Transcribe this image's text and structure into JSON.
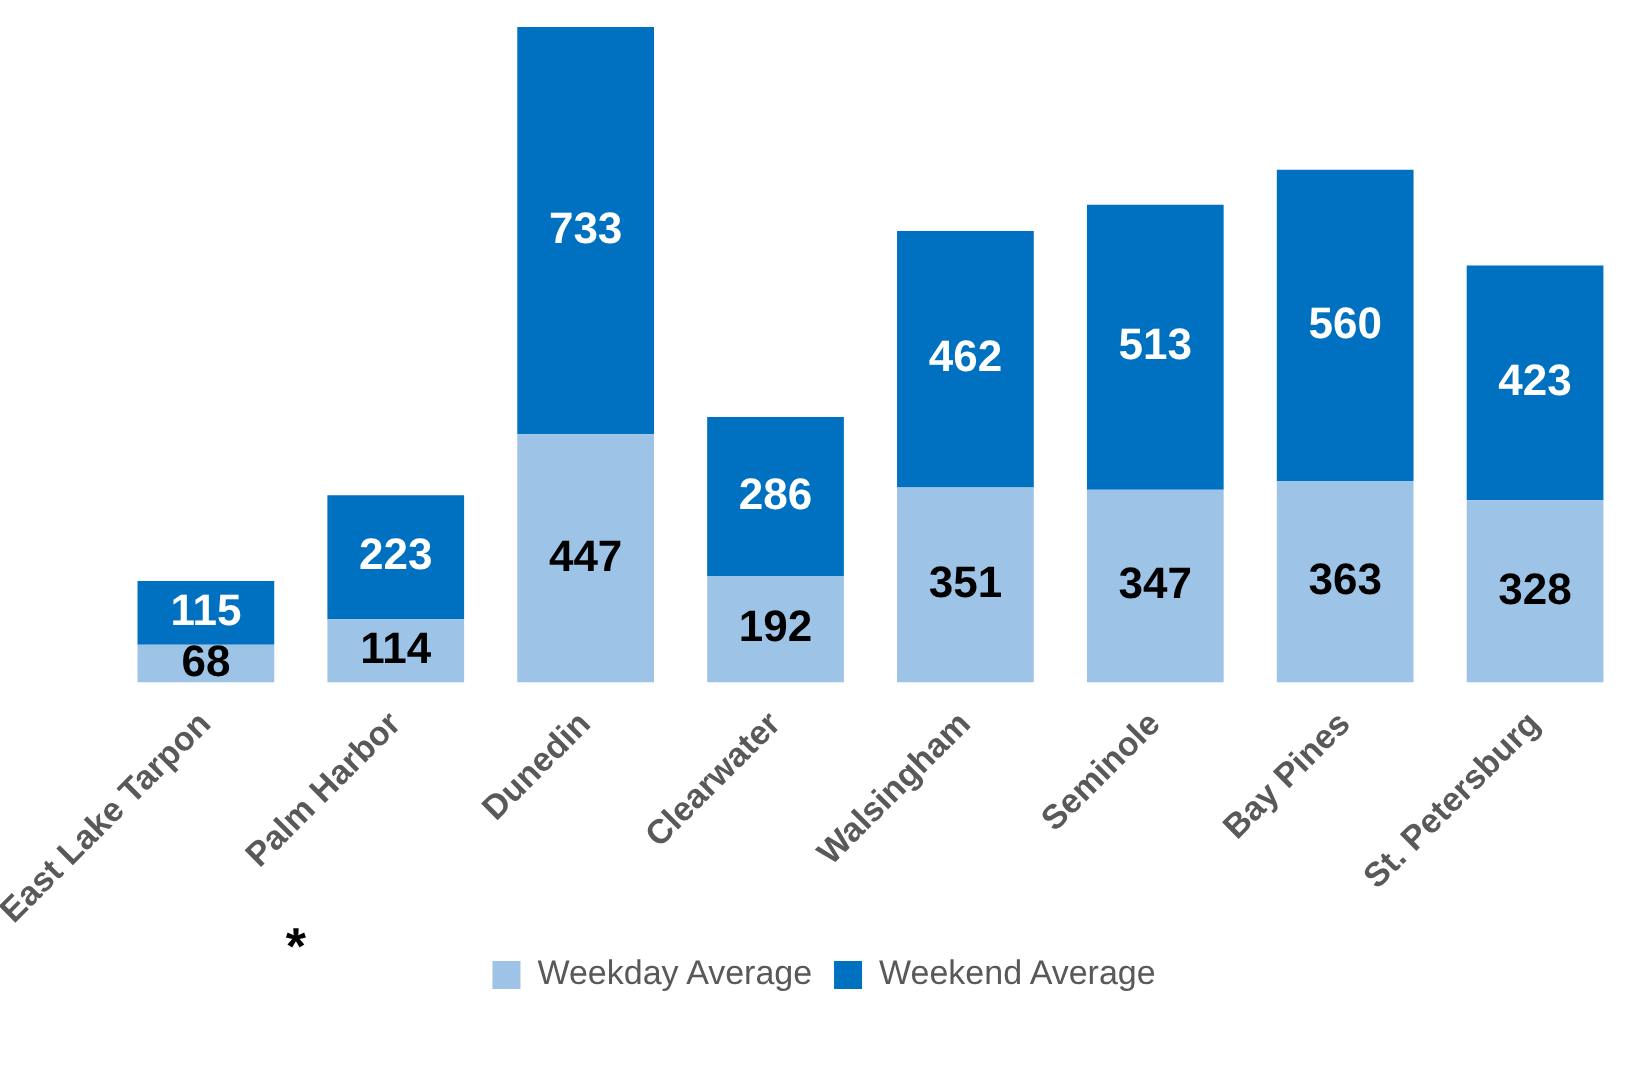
{
  "chart_data": {
    "type": "bar",
    "stacked": true,
    "data_labels": true,
    "legend": "bottom",
    "grid": false,
    "tick_labels": "x",
    "categories": [
      "East Lake Tarpon",
      "Palm Harbor",
      "Dunedin",
      "Clearwater",
      "Walsingham",
      "Seminole",
      "Bay Pines",
      "St. Petersburg"
    ],
    "series": [
      {
        "name": "Weekday Average",
        "color": "#9dc3e6",
        "values": [
          68,
          114,
          447,
          192,
          351,
          347,
          363,
          328
        ]
      },
      {
        "name": "Weekend Average",
        "color": "#0070c0",
        "values": [
          115,
          223,
          733,
          286,
          462,
          513,
          560,
          423
        ]
      }
    ],
    "annotations": [
      "*"
    ]
  }
}
